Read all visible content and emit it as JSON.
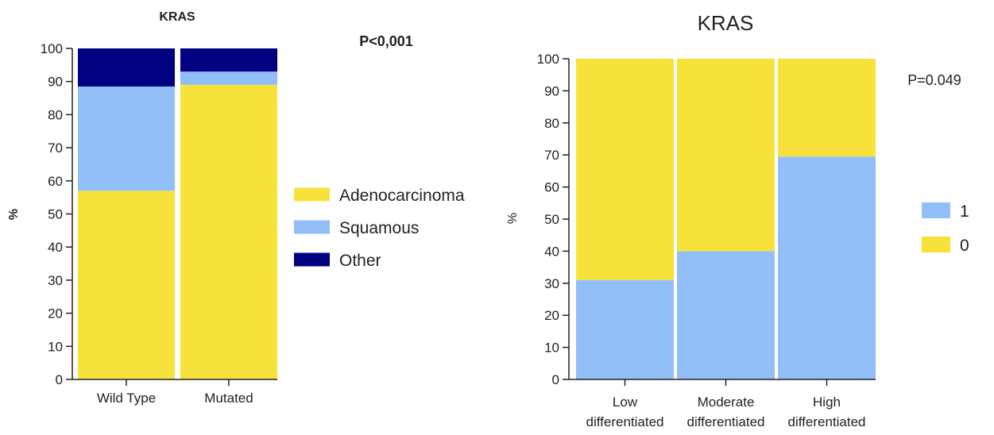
{
  "chart_data": [
    {
      "type": "bar",
      "stacked": true,
      "title": "KRAS",
      "annotation": "P<0,001",
      "ylabel": "%",
      "xlabel": "",
      "ylim": [
        0,
        100
      ],
      "yticks": [
        0,
        10,
        20,
        30,
        40,
        50,
        60,
        70,
        80,
        90,
        100
      ],
      "categories": [
        "Wild Type",
        "Mutated"
      ],
      "series": [
        {
          "name": "Adenocarcinoma",
          "color": "#f7e23c",
          "values": [
            57,
            89
          ]
        },
        {
          "name": "Squamous",
          "color": "#92bff7",
          "values": [
            31.5,
            4
          ]
        },
        {
          "name": "Other",
          "color": "#000080",
          "values": [
            11.5,
            7
          ]
        }
      ],
      "legend_position": "right",
      "legend_order": [
        "Adenocarcinoma",
        "Squamous",
        "Other"
      ]
    },
    {
      "type": "bar",
      "stacked": true,
      "title": "KRAS",
      "annotation": "P=0.049",
      "ylabel": "%",
      "xlabel": "",
      "ylim": [
        0,
        100
      ],
      "yticks": [
        0,
        10,
        20,
        30,
        40,
        50,
        60,
        70,
        80,
        90,
        100
      ],
      "categories": [
        "Low\ndifferentiated",
        "Moderate\ndifferentiated",
        "High\ndifferentiated"
      ],
      "series": [
        {
          "name": "1",
          "color": "#92bff7",
          "values": [
            31,
            40,
            69.5
          ]
        },
        {
          "name": "0",
          "color": "#f7e23c",
          "values": [
            69,
            60,
            30.5
          ]
        }
      ],
      "legend_position": "right",
      "legend_order": [
        "1",
        "0"
      ]
    }
  ]
}
